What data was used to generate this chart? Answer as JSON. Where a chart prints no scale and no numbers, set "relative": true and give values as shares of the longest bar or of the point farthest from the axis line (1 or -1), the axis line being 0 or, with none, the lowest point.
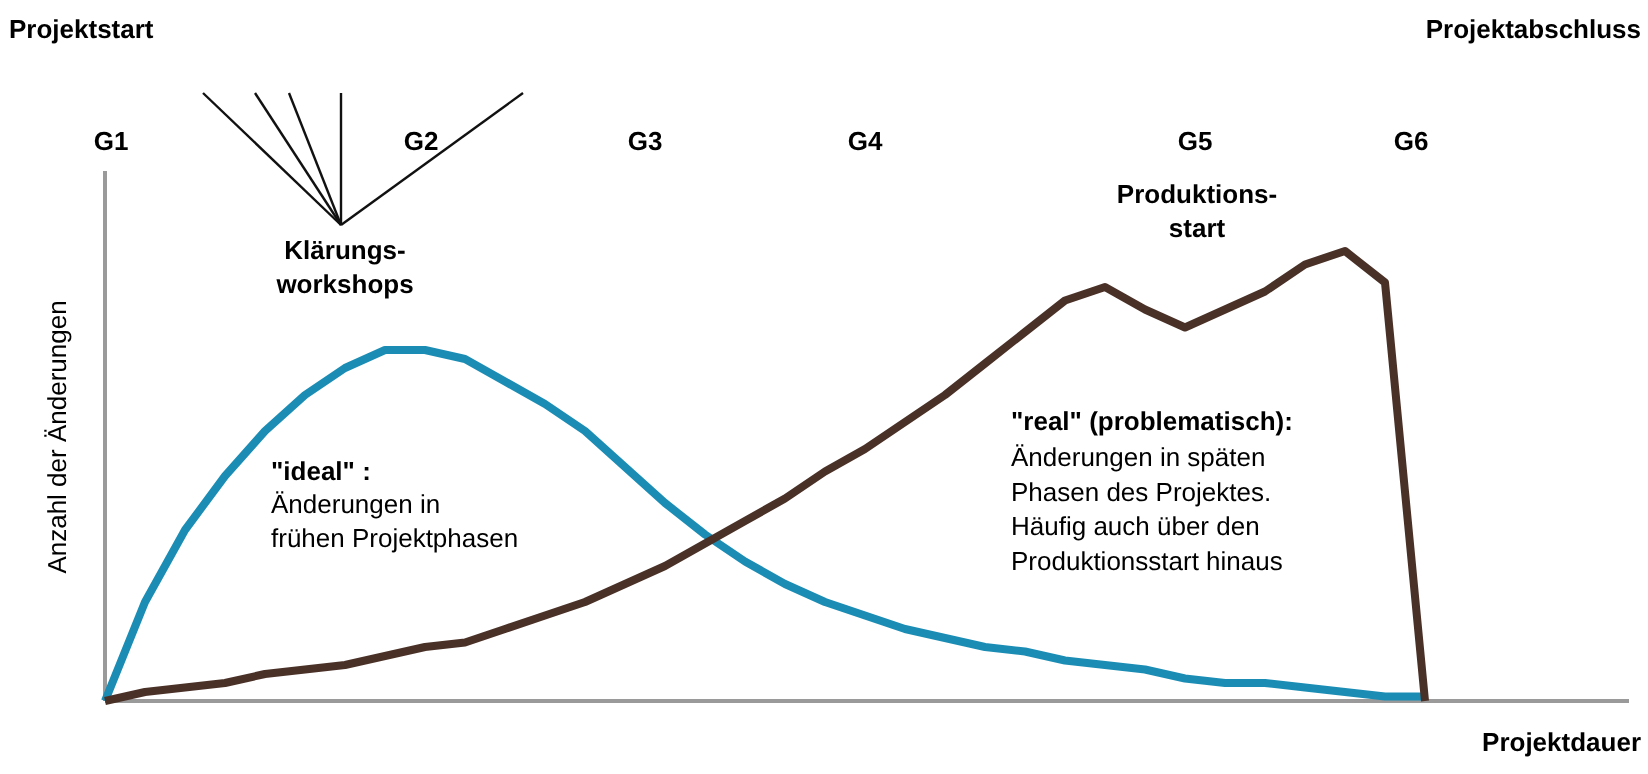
{
  "chart_data": {
    "type": "line",
    "relative": true,
    "xlabel": "Projektdauer",
    "ylabel": "Anzahl der Änderungen",
    "categories": [
      null,
      null,
      null,
      null,
      null,
      null,
      null,
      null,
      null,
      null,
      null,
      null,
      null,
      null,
      null,
      null,
      null,
      null,
      null,
      null,
      null,
      null,
      null,
      null,
      null,
      null,
      null,
      null,
      null,
      null,
      null,
      null,
      null,
      null
    ],
    "series": [
      {
        "color": "#1b8db5",
        "values": [
          0,
          0.22,
          0.38,
          0.5,
          0.6,
          0.68,
          0.74,
          0.78,
          0.78,
          0.76,
          0.71,
          0.66,
          0.6,
          0.52,
          0.44,
          0.37,
          0.31,
          0.26,
          0.22,
          0.19,
          0.16,
          0.14,
          0.12,
          0.11,
          0.09,
          0.08,
          0.07,
          0.05,
          0.04,
          0.04,
          0.03,
          0.02,
          0.01,
          0.01
        ]
      },
      {
        "color": "#4a3128",
        "values": [
          0,
          0.02,
          0.03,
          0.04,
          0.06,
          0.07,
          0.08,
          0.1,
          0.12,
          0.13,
          0.16,
          0.19,
          0.22,
          0.26,
          0.3,
          0.35,
          0.4,
          0.45,
          0.51,
          0.56,
          0.62,
          0.68,
          0.75,
          0.82,
          0.89,
          0.92,
          0.87,
          0.83,
          0.87,
          0.91,
          0.97,
          1.0,
          0.93,
          0
        ]
      }
    ],
    "annotations": [
      "Projektstart",
      "Projektabschluss",
      "G1",
      "G2",
      "G3",
      "G4",
      "G5",
      "G6",
      "Klärungs-\nworkshops",
      "Produktions-\nstart",
      "\"ideal\" :",
      "Änderungen in\nfrühen Projektphasen",
      "\"real\" (problematisch):",
      "Änderungen in späten\nPhasen des Projektes.\nHäufig auch über den\nProduktionsstart hinaus"
    ]
  }
}
